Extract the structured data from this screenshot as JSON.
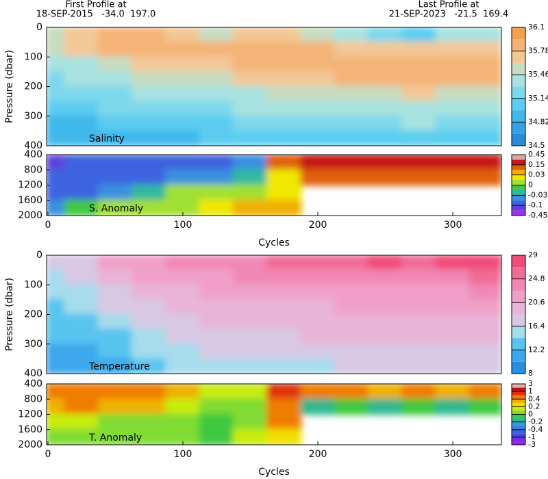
{
  "chart_data": [
    {
      "type": "heatmap",
      "label": "Salinity",
      "ylabel": "Pressure (dbar)",
      "annotations": [
        "First Profile at",
        "18-SEP-2015   -34.0  197.0",
        "Last Profile at",
        "21-SEP-2023   -21.5  169.4"
      ],
      "xlim": [
        -1,
        336
      ],
      "ylim": [
        400,
        0
      ],
      "yticks": [
        0,
        100,
        200,
        300,
        400
      ],
      "levels": [
        34.5,
        34.66,
        34.82,
        34.98,
        35.14,
        35.3,
        35.46,
        35.62,
        35.78,
        35.94,
        36.1
      ],
      "colors": [
        "#2a8ad8",
        "#3aa0e4",
        "#40b8ec",
        "#5ccdf0",
        "#7ed8ec",
        "#a8e2e0",
        "#c8dcc0",
        "#f2c896",
        "#f4b478",
        "#f4a050"
      ],
      "cbar_ticks": [
        34.5,
        34.82,
        35.14,
        35.46,
        35.78,
        36.1
      ],
      "field": {
        "x": [
          0,
          25,
          50,
          75,
          100,
          125,
          150,
          175,
          200,
          225,
          250,
          275,
          300,
          325
        ],
        "y": [
          25,
          75,
          125,
          175,
          225,
          275,
          325,
          375
        ],
        "z": [
          [
            35.6,
            35.55,
            35.4,
            35.25,
            35.15,
            35.05,
            34.95,
            34.85
          ],
          [
            35.7,
            35.65,
            35.45,
            35.3,
            35.2,
            35.1,
            34.95,
            34.85
          ],
          [
            35.8,
            35.8,
            35.6,
            35.4,
            35.25,
            35.15,
            35.0,
            34.9
          ],
          [
            35.8,
            35.8,
            35.7,
            35.5,
            35.3,
            35.2,
            35.05,
            34.9
          ],
          [
            35.7,
            35.8,
            35.75,
            35.55,
            35.35,
            35.2,
            35.05,
            34.95
          ],
          [
            35.6,
            35.8,
            35.75,
            35.6,
            35.4,
            35.25,
            35.1,
            35.0
          ],
          [
            35.7,
            35.85,
            35.8,
            35.65,
            35.45,
            35.3,
            35.15,
            35.0
          ],
          [
            35.7,
            35.85,
            35.85,
            35.7,
            35.5,
            35.35,
            35.2,
            35.05
          ],
          [
            35.5,
            35.8,
            35.85,
            35.75,
            35.55,
            35.4,
            35.2,
            35.05
          ],
          [
            35.3,
            35.7,
            35.85,
            35.8,
            35.6,
            35.4,
            35.25,
            35.1
          ],
          [
            35.2,
            35.7,
            35.85,
            35.8,
            35.6,
            35.45,
            35.25,
            35.1
          ],
          [
            35.1,
            35.65,
            35.85,
            35.8,
            35.65,
            35.45,
            35.3,
            35.1
          ],
          [
            35.3,
            35.7,
            35.85,
            35.8,
            35.6,
            35.4,
            35.25,
            35.1
          ],
          [
            35.4,
            35.75,
            35.85,
            35.8,
            35.6,
            35.4,
            35.25,
            35.1
          ]
        ]
      }
    },
    {
      "type": "heatmap",
      "label": "S. Anomaly",
      "xlabel": "Cycles",
      "xlim": [
        -1,
        336
      ],
      "ylim": [
        2000,
        400
      ],
      "yticks": [
        400,
        800,
        1200,
        1600,
        2000
      ],
      "xticks": [
        0,
        100,
        200,
        300
      ],
      "levels": [
        -0.45,
        -0.2,
        -0.1,
        -0.06,
        -0.03,
        -0.015,
        0,
        0.015,
        0.03,
        0.08,
        0.15,
        0.3,
        0.45
      ],
      "colors": [
        "#a030e8",
        "#6040e0",
        "#3c64e0",
        "#3a90e0",
        "#30b8a0",
        "#40c840",
        "#a0e030",
        "#f0e800",
        "#f0b000",
        "#e06010",
        "#c81818",
        "#d8a8a8"
      ],
      "cbar_ticks": [
        -0.45,
        -0.1,
        -0.03,
        0,
        0.03,
        0.15,
        0.45
      ],
      "field": {
        "x": [
          0,
          25,
          50,
          75,
          100,
          125,
          150,
          175,
          200,
          225,
          250,
          275,
          300,
          325
        ],
        "y": [
          600,
          1000,
          1400,
          1800
        ],
        "z": [
          [
            -0.12,
            -0.08,
            -0.08,
            -0.05
          ],
          [
            -0.1,
            -0.08,
            -0.07,
            -0.01
          ],
          [
            -0.1,
            -0.07,
            -0.05,
            0.005
          ],
          [
            -0.1,
            -0.07,
            -0.02,
            0.005
          ],
          [
            -0.1,
            -0.06,
            0.005,
            0.01
          ],
          [
            -0.08,
            -0.05,
            0.005,
            0.02
          ],
          [
            -0.05,
            -0.02,
            0.005,
            0.04
          ],
          [
            0.12,
            0.02,
            0.02,
            0.06
          ],
          [
            0.18,
            0.12,
            null,
            null
          ],
          [
            0.18,
            0.12,
            null,
            null
          ],
          [
            0.18,
            0.12,
            null,
            null
          ],
          [
            0.18,
            0.12,
            null,
            null
          ],
          [
            0.18,
            0.12,
            null,
            null
          ],
          [
            0.18,
            0.12,
            null,
            null
          ]
        ]
      }
    },
    {
      "type": "heatmap",
      "label": "Temperature",
      "ylabel": "Pressure (dbar)",
      "xlim": [
        -1,
        336
      ],
      "ylim": [
        400,
        0
      ],
      "yticks": [
        0,
        100,
        200,
        300,
        400
      ],
      "levels": [
        8,
        10.1,
        12.2,
        14.3,
        16.4,
        18.5,
        20.6,
        22.7,
        24.8,
        26.9,
        29
      ],
      "colors": [
        "#2a8ee0",
        "#3ca8ec",
        "#58c4f0",
        "#a6dcec",
        "#d8c8e4",
        "#e8b4d8",
        "#f0a0c8",
        "#f088b4",
        "#f06c98",
        "#f04c78"
      ],
      "cbar_ticks": [
        8,
        12.2,
        16.4,
        20.6,
        24.8,
        29
      ],
      "field": {
        "x": [
          0,
          25,
          50,
          75,
          100,
          125,
          150,
          175,
          200,
          225,
          250,
          275,
          300,
          325
        ],
        "y": [
          25,
          75,
          125,
          175,
          225,
          275,
          325,
          375
        ],
        "z": [
          [
            17,
            16,
            15,
            14,
            13.5,
            12.5,
            11.5,
            10.5
          ],
          [
            18,
            17,
            15.5,
            14.5,
            13.5,
            12.5,
            11.5,
            10.5
          ],
          [
            21,
            19,
            17.5,
            16.5,
            15,
            14,
            13,
            12
          ],
          [
            22,
            21,
            19.5,
            18,
            17,
            16,
            15,
            13.5
          ],
          [
            23,
            22,
            20.5,
            19.5,
            18,
            17,
            16,
            15
          ],
          [
            23,
            22,
            21,
            19.5,
            18.5,
            17.5,
            16.5,
            15.5
          ],
          [
            24,
            23,
            21.5,
            20,
            19,
            18,
            17,
            16
          ],
          [
            25,
            23,
            21.5,
            20,
            19,
            18,
            17,
            16
          ],
          [
            25,
            23,
            21.5,
            20.5,
            19.5,
            18.5,
            17,
            16
          ],
          [
            26,
            24,
            22,
            21,
            20,
            18.5,
            17.5,
            16.5
          ],
          [
            27,
            24,
            22.5,
            21,
            20,
            19,
            17.5,
            16.5
          ],
          [
            26,
            24,
            22,
            21,
            20,
            18.5,
            17.5,
            16.5
          ],
          [
            27,
            24.5,
            22.5,
            21,
            19.5,
            18.5,
            17,
            16.5
          ],
          [
            27,
            25,
            23,
            21.5,
            20,
            18.5,
            17.5,
            16.5
          ]
        ]
      }
    },
    {
      "type": "heatmap",
      "label": "T. Anomaly",
      "xlabel": "Cycles",
      "xlim": [
        -1,
        336
      ],
      "ylim": [
        2000,
        400
      ],
      "yticks": [
        400,
        800,
        1200,
        1600,
        2000
      ],
      "xticks": [
        0,
        100,
        200,
        300
      ],
      "levels": [
        -3,
        -2,
        -1,
        -0.7,
        -0.4,
        -0.3,
        -0.2,
        -0.1,
        0,
        0.1,
        0.2,
        0.3,
        0.4,
        0.7,
        1,
        2,
        3
      ],
      "colors": [
        "#a020f0",
        "#7030e8",
        "#4848e0",
        "#3c60e0",
        "#3880e8",
        "#30a0d0",
        "#30b890",
        "#40c840",
        "#80dc30",
        "#c8ec10",
        "#f0e000",
        "#f0b000",
        "#f07c00",
        "#e03010",
        "#c01010",
        "#e0b0b0"
      ],
      "cbar_ticks": [
        -3,
        -1,
        -0.4,
        -0.2,
        0,
        0.2,
        0.4,
        1,
        3
      ],
      "field": {
        "x": [
          0,
          25,
          50,
          75,
          100,
          125,
          150,
          175,
          200,
          225,
          250,
          275,
          300,
          325
        ],
        "y": [
          600,
          1000,
          1400,
          1800
        ],
        "z": [
          [
            0.5,
            0.3,
            0.1,
            0.05
          ],
          [
            0.5,
            0.4,
            0.1,
            0.05
          ],
          [
            0.4,
            0.3,
            0.05,
            0.02
          ],
          [
            0.4,
            0.3,
            0.05,
            0.02
          ],
          [
            0.3,
            0.15,
            0.02,
            0.0
          ],
          [
            0.1,
            0.02,
            -0.02,
            -0.02
          ],
          [
            0.1,
            0.05,
            0.03,
            0.1
          ],
          [
            0.8,
            0.6,
            0.4,
            0.25
          ],
          [
            0.4,
            -0.15,
            null,
            null
          ],
          [
            0.5,
            -0.1,
            null,
            null
          ],
          [
            0.3,
            -0.2,
            null,
            null
          ],
          [
            0.4,
            -0.1,
            null,
            null
          ],
          [
            0.3,
            -0.2,
            null,
            null
          ],
          [
            0.4,
            -0.1,
            null,
            null
          ]
        ]
      }
    }
  ]
}
